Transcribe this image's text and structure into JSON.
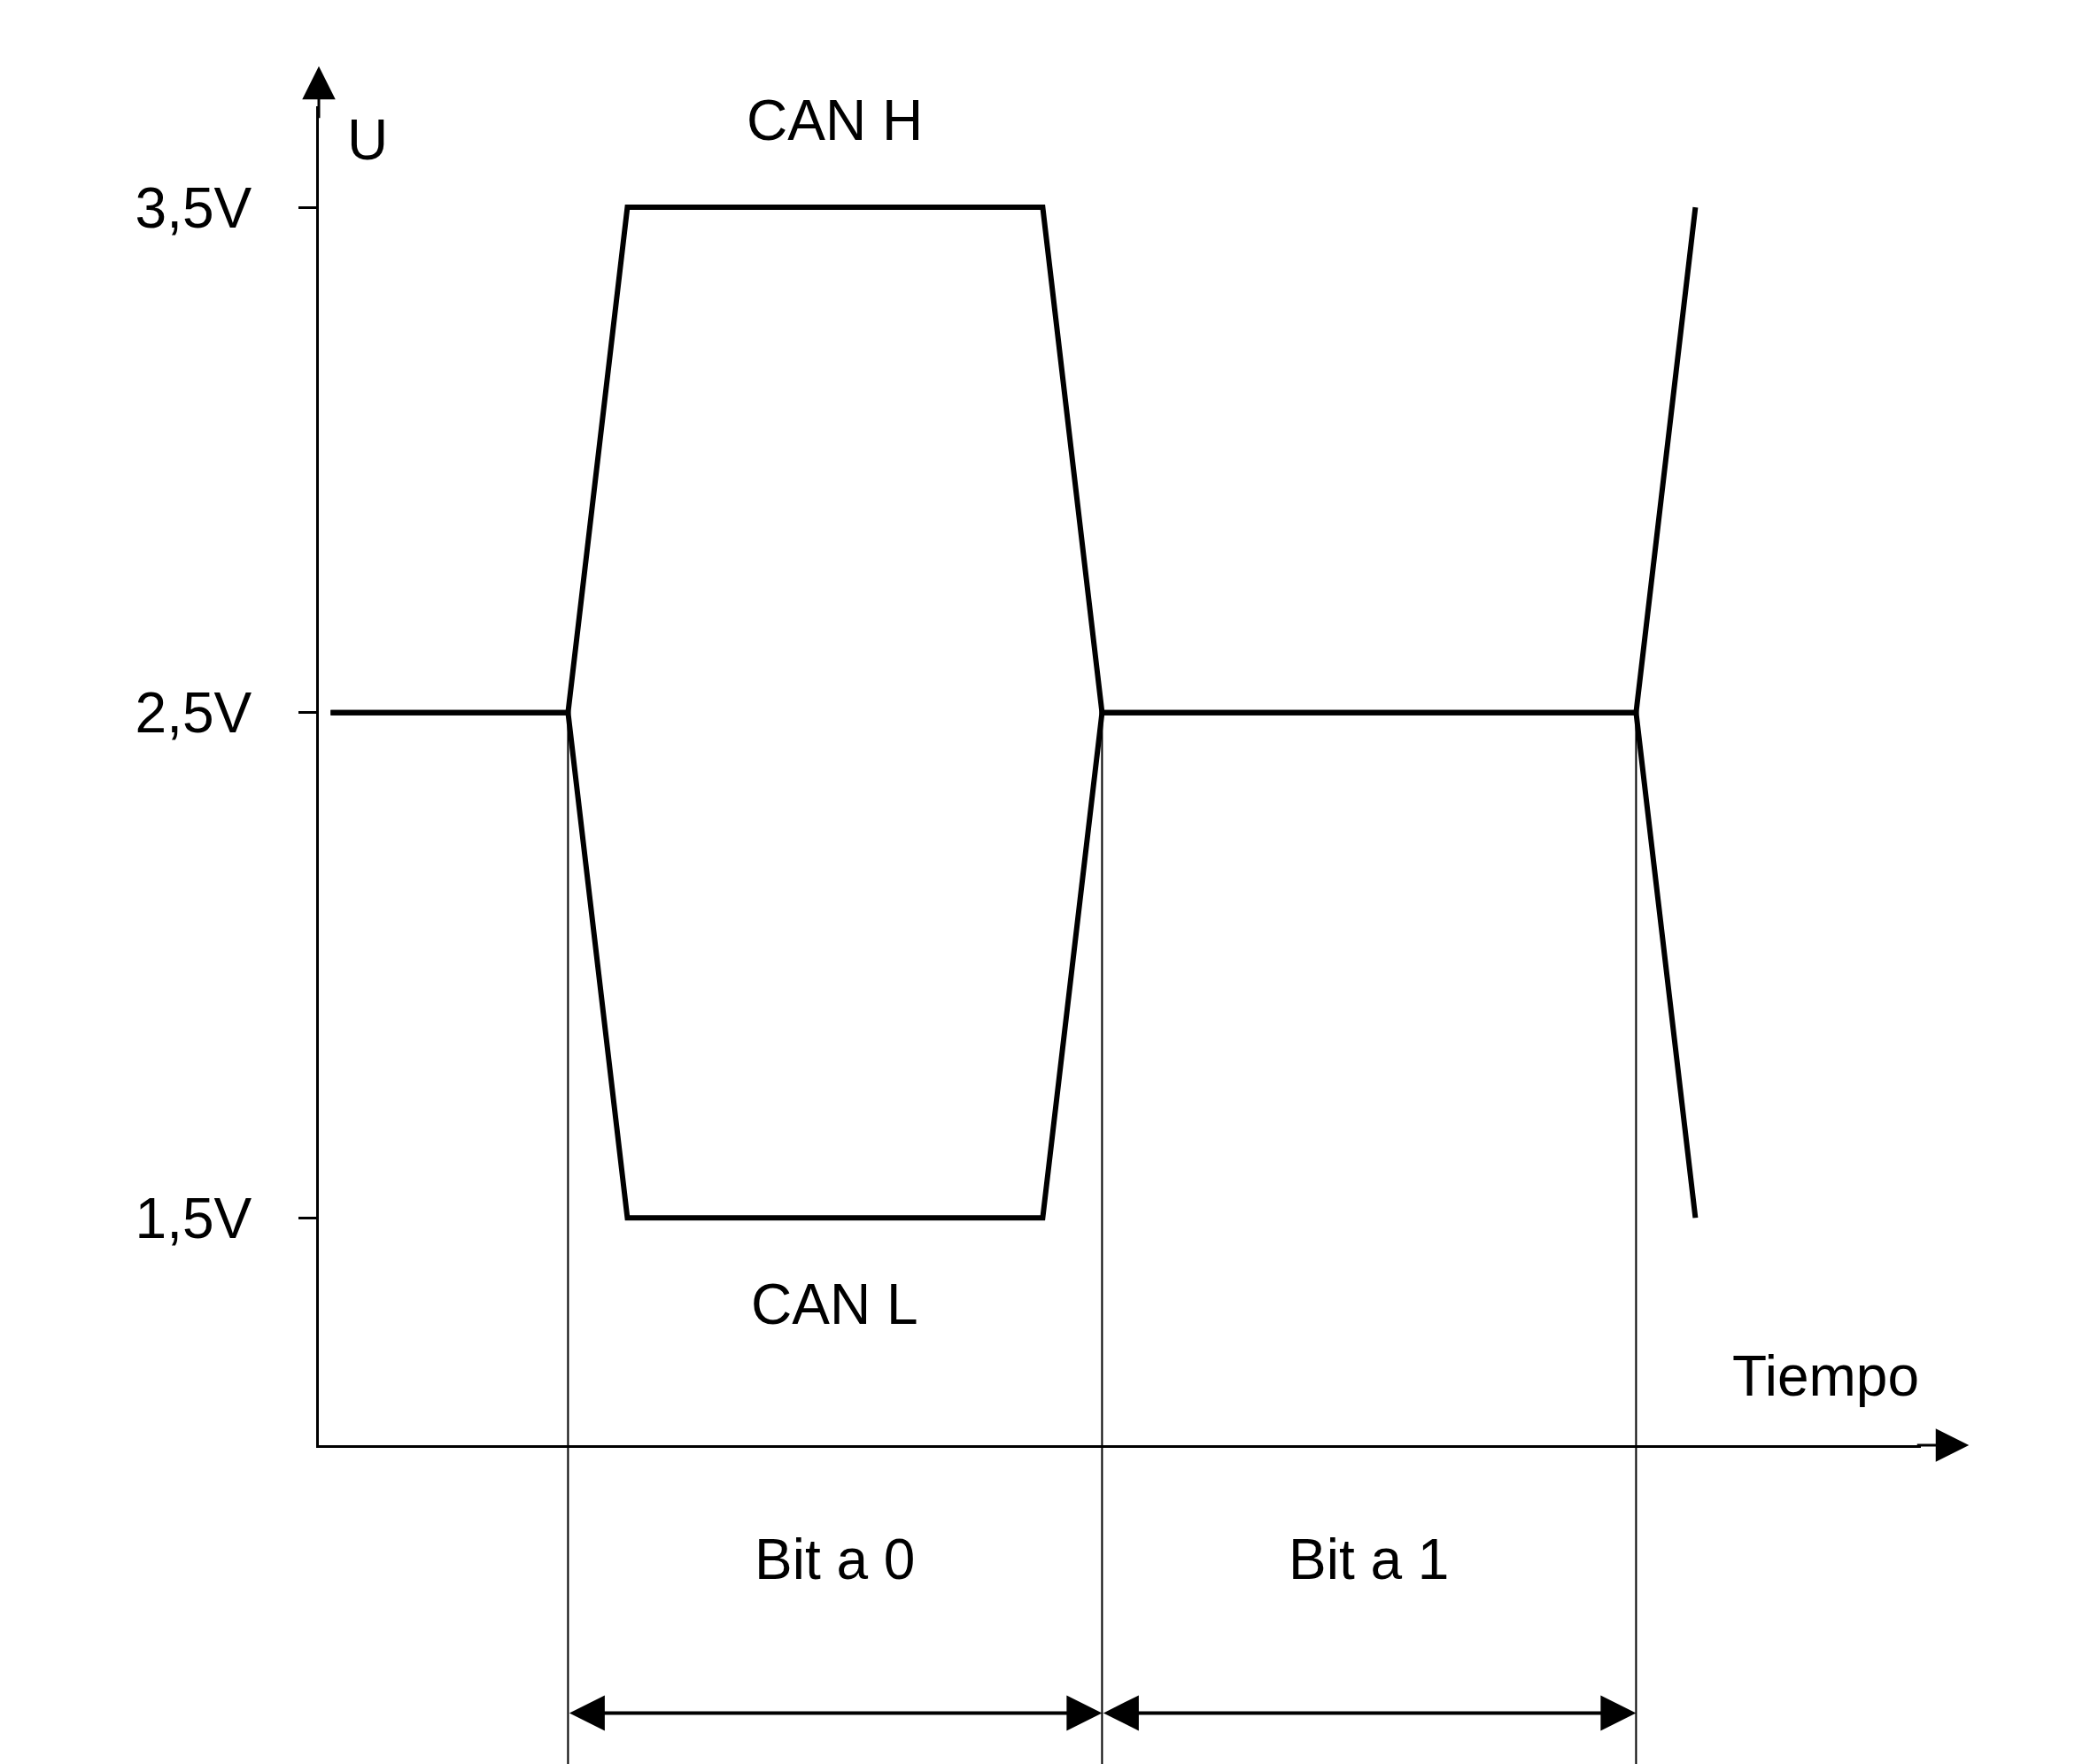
{
  "chart_data": {
    "type": "line",
    "xlabel": "Tiempo",
    "ylabel": "U",
    "categories": [
      null,
      null,
      null,
      null,
      null,
      null,
      null,
      null,
      null,
      null,
      null,
      null,
      null,
      null,
      null,
      null,
      null,
      null,
      null,
      null,
      null,
      null,
      null,
      null
    ],
    "series": [
      {
        "name": "CAN H",
        "color": "#000000",
        "values": [
          2.5,
          2.5,
          2.5,
          2.5,
          2.5,
          3.5,
          3.5,
          3.5,
          3.5,
          3.5,
          3.5,
          3.5,
          3.5,
          2.5,
          2.5,
          2.5,
          2.5,
          2.5,
          2.5,
          2.5,
          2.5,
          2.5,
          2.5,
          3.5
        ]
      },
      {
        "name": "CAN L",
        "color": "#000000",
        "values": [
          2.5,
          2.5,
          2.5,
          2.5,
          2.5,
          1.5,
          1.5,
          1.5,
          1.5,
          1.5,
          1.5,
          1.5,
          1.5,
          2.5,
          2.5,
          2.5,
          2.5,
          2.5,
          2.5,
          2.5,
          2.5,
          2.5,
          2.5,
          1.5
        ]
      }
    ],
    "ylim": [
      1.05,
      3.7
    ],
    "yticks": [
      {
        "value": 1.5,
        "label": "1,5V"
      },
      {
        "value": 2.5,
        "label": "2,5V"
      },
      {
        "value": 3.5,
        "label": "3,5V"
      }
    ],
    "tick_labels": "y",
    "annotations": [
      "Bit a 0",
      "Bit a 1"
    ],
    "legend": false,
    "marker": "none",
    "line_style": "solid"
  }
}
